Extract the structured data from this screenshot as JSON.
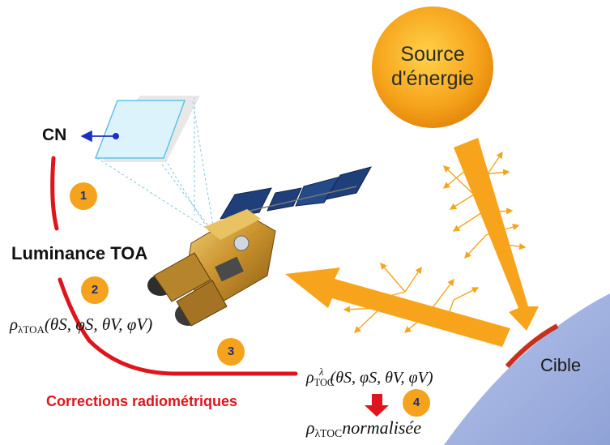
{
  "labels": {
    "cn": "CN",
    "luminance_toa": "Luminance TOA",
    "corrections": "Corrections radiométriques",
    "source_line1": "Source",
    "source_line2": "d'énergie",
    "target": "Cible"
  },
  "steps": [
    "1",
    "2",
    "3",
    "4"
  ],
  "formulas": {
    "rho": "ρ",
    "toa_sub": "λTOA",
    "toa_args": "(θS, φS, θV, φV)",
    "toc_sup": "λ",
    "toc_sub": "TOC",
    "toc_args": "(θS, φS, θV, φV)",
    "norm_sub": "λTOC",
    "norm_word": "normalisée"
  },
  "colors": {
    "red_path": "#e0141c",
    "step_badge": "#f5a21d",
    "sun": "#f2a31a",
    "ray": "#f7a41c",
    "earth": "#a9b8e3",
    "target_patch": "#c8301c",
    "sensor_arrow": "#1a2fc8"
  },
  "icons": [
    "sun-icon",
    "satellite-icon",
    "image-frame-icon",
    "earth-surface-icon"
  ]
}
